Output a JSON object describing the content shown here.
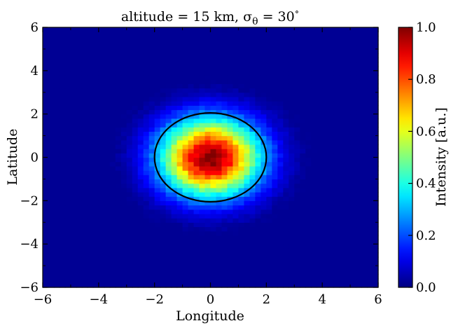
{
  "chart_data": {
    "type": "heatmap",
    "title": "altitude = 15 km, σθ = 30°",
    "title_parts": {
      "prefix": "altitude = 15 km, σ",
      "subscript": "θ",
      "suffix": " = 30",
      "superscript": "∘"
    },
    "xlabel": "Longitude",
    "ylabel": "Latitude",
    "xlim": [
      -6,
      6
    ],
    "ylim": [
      -6,
      6
    ],
    "x_ticks": [
      -6,
      -4,
      -2,
      0,
      2,
      4,
      6
    ],
    "y_ticks": [
      -6,
      -4,
      -2,
      0,
      2,
      4,
      6
    ],
    "x_tick_labels": [
      "−6",
      "−4",
      "−2",
      "0",
      "2",
      "4",
      "6"
    ],
    "y_tick_labels": [
      "−6",
      "−4",
      "−2",
      "0",
      "2",
      "4",
      "6"
    ],
    "bins": {
      "nx": 60,
      "ny": 60
    },
    "distribution": {
      "shape": "2D Gaussian",
      "center": [
        0,
        0
      ],
      "sigma_x": 1.25,
      "sigma_y": 1.25,
      "peak": 1.0,
      "noise": 0.05
    },
    "contour": {
      "shape": "ellipse",
      "center": [
        0,
        0
      ],
      "semi_axis_x": 2.0,
      "semi_axis_y": 2.05,
      "color": "#000000"
    },
    "colorbar": {
      "label": "Intensity [a.u.]",
      "range": [
        0,
        1
      ],
      "ticks": [
        0.0,
        0.2,
        0.4,
        0.6,
        0.8,
        1.0
      ],
      "tick_labels": [
        "0.0",
        "0.2",
        "0.4",
        "0.6",
        "0.8",
        "1.0"
      ],
      "colormap": "jet"
    },
    "grid": false,
    "legend": "none"
  }
}
